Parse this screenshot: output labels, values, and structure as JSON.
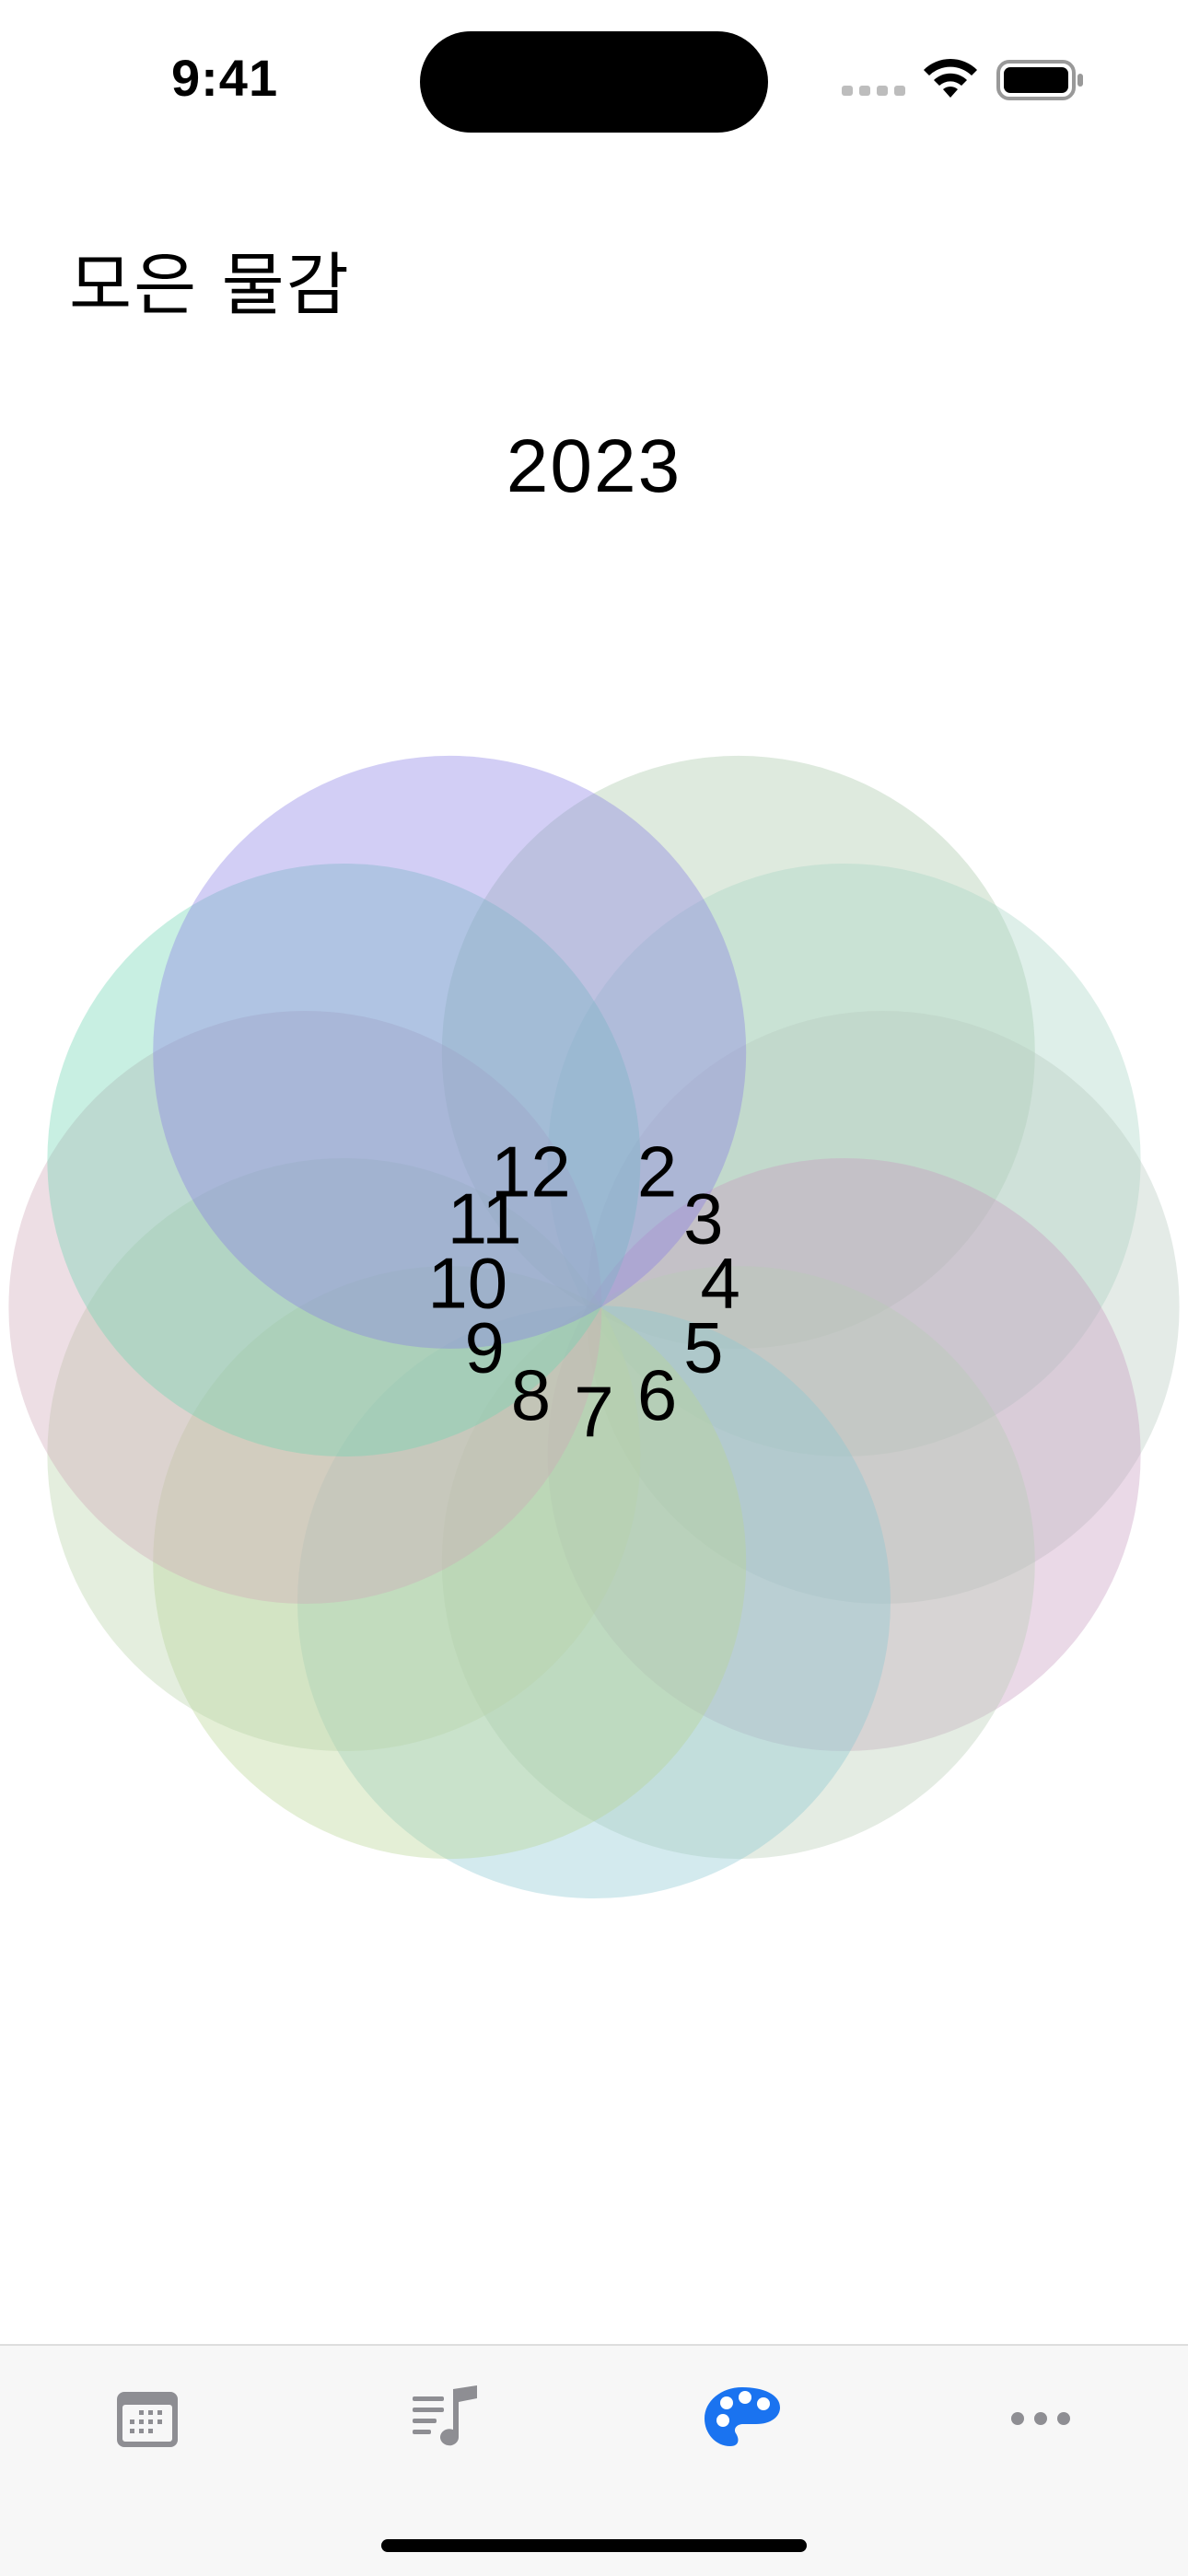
{
  "status_bar": {
    "time": "9:41"
  },
  "header": {
    "title": "모은 물감"
  },
  "year": "2023",
  "months": [
    {
      "label": "2",
      "color": "#a8c9a8"
    },
    {
      "label": "3",
      "color": "#a8d6c6"
    },
    {
      "label": "4",
      "color": "#b9cbbf"
    },
    {
      "label": "5",
      "color": "#c79ac0"
    },
    {
      "label": "6",
      "color": "#b9cdb6"
    },
    {
      "label": "7",
      "color": "#8cc8d2"
    },
    {
      "label": "8",
      "color": "#b8d492"
    },
    {
      "label": "9",
      "color": "#b9d2a8"
    },
    {
      "label": "10",
      "color": "#cfa9b9"
    },
    {
      "label": "11",
      "color": "#6fd6b4"
    },
    {
      "label": "12",
      "color": "#8a7ee6"
    }
  ],
  "tab_bar": {
    "tabs": [
      {
        "name": "calendar-tab",
        "icon": "calendar-icon"
      },
      {
        "name": "music-tab",
        "icon": "music-list-icon"
      },
      {
        "name": "palette-tab",
        "icon": "palette-icon",
        "active": true
      },
      {
        "name": "more-tab",
        "icon": "ellipsis-icon"
      }
    ],
    "active_color": "#1a73f0",
    "inactive_color": "#8e8e93"
  }
}
